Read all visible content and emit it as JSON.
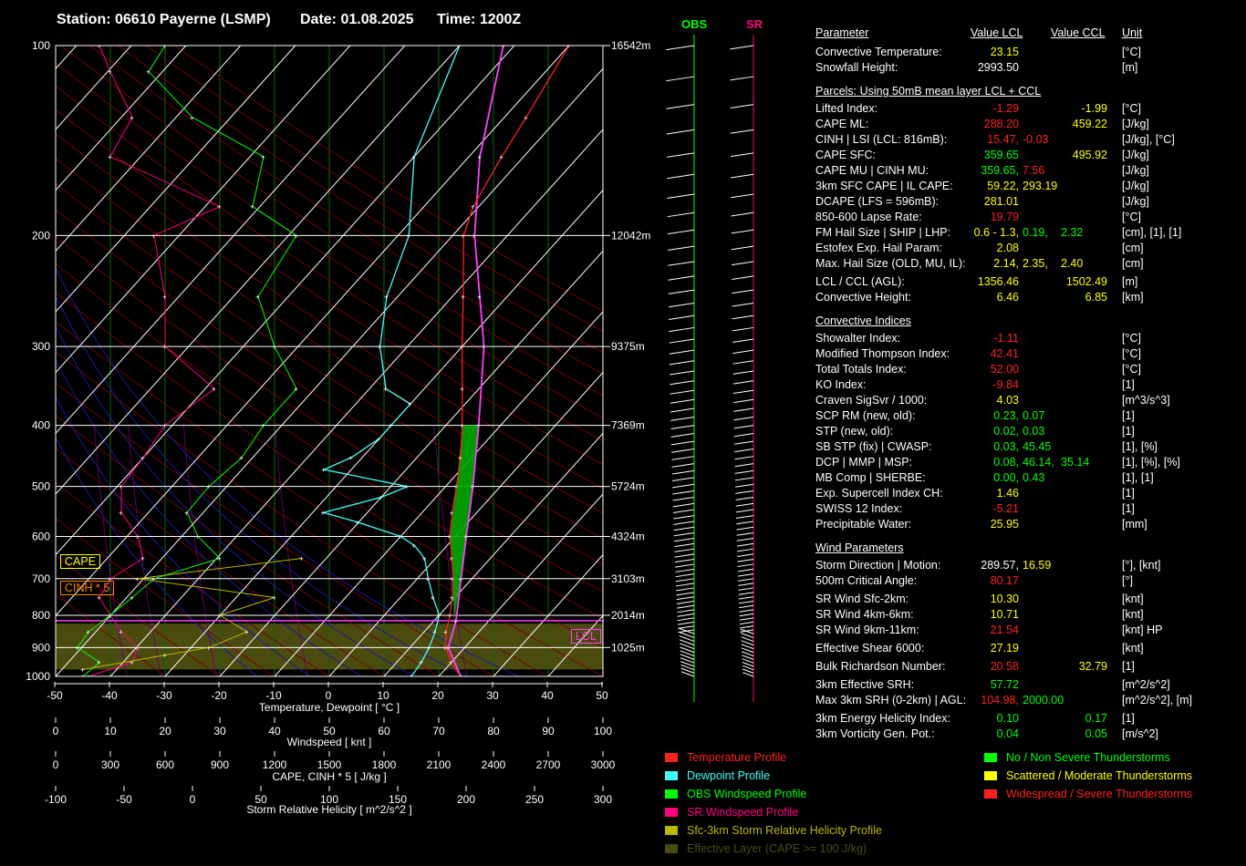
{
  "header": {
    "station": "Station: 06610 Payerne (LSMP)",
    "date": "Date: 01.08.2025",
    "time": "Time: 1200Z"
  },
  "colors": {
    "temperature": "#ff2020",
    "dewpoint": "#40ffff",
    "obs_wind": "#00ff00",
    "sr_wind": "#ff0080",
    "srh": "#b8b800",
    "effective_layer": "#4b4b10",
    "cape_fill": "#00aa00",
    "parcel": "#ff40ff"
  },
  "chart_data": {
    "type": "skew-t",
    "pressure_labels": [
      "100",
      "200",
      "300",
      "400",
      "500",
      "600",
      "700",
      "800",
      "900",
      "1000"
    ],
    "height_labels": [
      "16542m",
      "12042m",
      "9375m",
      "7369m",
      "5724m",
      "4324m",
      "3103m",
      "2014m",
      "1025m"
    ],
    "temp_ticks": [
      "-50",
      "-40",
      "-30",
      "-20",
      "-10",
      "0",
      "10",
      "20",
      "30",
      "40",
      "50"
    ],
    "temp_axis_label": "Temperature, Dewpoint  [ °C ]",
    "wind_ticks": [
      "0",
      "10",
      "20",
      "30",
      "40",
      "50",
      "60",
      "70",
      "80",
      "90",
      "100"
    ],
    "wind_axis_label": "Windspeed  [ knt ]",
    "cape_ticks": [
      "0",
      "300",
      "600",
      "900",
      "1200",
      "1500",
      "1800",
      "2100",
      "2400",
      "2700",
      "3000"
    ],
    "cape_axis_label": "CAPE, CINH * 5  [ J/kg ]",
    "srh_ticks": [
      "-100",
      "-50",
      "0",
      "50",
      "100",
      "150",
      "200",
      "250",
      "300"
    ],
    "srh_axis_label": "Storm Relative Helicity  [ m^2/s^2 ]",
    "cape_box": "CAPE",
    "cinh_box": "CINH * 5",
    "lcl_box": "LCL",
    "obs_label": "OBS",
    "sr_label": "SR",
    "temperature_profile": [
      [
        1000,
        24
      ],
      [
        950,
        20
      ],
      [
        900,
        16.5
      ],
      [
        850,
        14
      ],
      [
        800,
        12
      ],
      [
        750,
        9.5
      ],
      [
        700,
        6.5
      ],
      [
        650,
        3
      ],
      [
        600,
        -1
      ],
      [
        550,
        -4.5
      ],
      [
        500,
        -8
      ],
      [
        450,
        -12
      ],
      [
        400,
        -17
      ],
      [
        350,
        -23
      ],
      [
        300,
        -30
      ],
      [
        250,
        -38
      ],
      [
        200,
        -48
      ],
      [
        180,
        -51
      ],
      [
        150,
        -54
      ],
      [
        130,
        -56
      ],
      [
        100,
        -60
      ]
    ],
    "dewpoint_profile": [
      [
        1000,
        15
      ],
      [
        950,
        14.5
      ],
      [
        900,
        13.5
      ],
      [
        850,
        12
      ],
      [
        800,
        10
      ],
      [
        750,
        6
      ],
      [
        700,
        2
      ],
      [
        650,
        -2
      ],
      [
        620,
        -6
      ],
      [
        600,
        -10
      ],
      [
        570,
        -20
      ],
      [
        550,
        -28
      ],
      [
        520,
        -20
      ],
      [
        500,
        -17
      ],
      [
        470,
        -35
      ],
      [
        450,
        -32
      ],
      [
        420,
        -30
      ],
      [
        400,
        -30
      ],
      [
        370,
        -30
      ],
      [
        350,
        -37
      ],
      [
        300,
        -45
      ],
      [
        250,
        -52
      ],
      [
        200,
        -58
      ],
      [
        150,
        -70
      ],
      [
        100,
        -80
      ]
    ],
    "parcel_profile": [
      [
        1000,
        24
      ],
      [
        900,
        17
      ],
      [
        816,
        14
      ],
      [
        700,
        8
      ],
      [
        600,
        2
      ],
      [
        500,
        -5
      ],
      [
        400,
        -14
      ],
      [
        300,
        -26
      ],
      [
        250,
        -35
      ],
      [
        200,
        -46
      ],
      [
        150,
        -58
      ],
      [
        100,
        -72
      ]
    ]
  },
  "table": {
    "col_headers": {
      "param": "Parameter",
      "lcl": "Value LCL",
      "ccl": "Value CCL",
      "unit": "Unit"
    },
    "rows": [
      {
        "label": "Convective Temperature:",
        "v1": "23.15",
        "c1": "y",
        "unit": "[°C]"
      },
      {
        "label": "Snowfall Height:",
        "v1": "2993.50",
        "c1": "w",
        "unit": "[m]"
      },
      {
        "section": "Parcels: Using 50mB mean layer LCL + CCL"
      },
      {
        "label": "Lifted Index:",
        "v1": "-1.29",
        "c1": "r",
        "v2": "-1.99",
        "c2": "y",
        "unit": "[°C]"
      },
      {
        "label": "CAPE ML:",
        "v1": "288.20",
        "c1": "r",
        "v2": "459.22",
        "c2": "y",
        "unit": "[J/kg]"
      },
      {
        "label": "CINH | LSI (LCL: 816mB):",
        "v1": "15.47,",
        "c1": "r",
        "v3": "-0.03",
        "c3": "r",
        "unit": "[J/kg], [°C]"
      },
      {
        "label": "CAPE SFC:",
        "v1": "359.65",
        "c1": "g",
        "v2": "495.92",
        "c2": "y",
        "unit": "[J/kg]"
      },
      {
        "label": "CAPE MU | CINH MU:",
        "v1": "359.65,",
        "c1": "g",
        "v3": "7.56",
        "c3": "r",
        "unit": "[J/kg]"
      },
      {
        "label": "3km SFC CAPE | IL CAPE:",
        "v1": "59.22,",
        "c1": "y",
        "v3": "293.19",
        "c3": "y",
        "unit": "[J/kg]"
      },
      {
        "label": "DCAPE (LFS = 596mB):",
        "v1": "281.01",
        "c1": "y",
        "unit": "[J/kg]"
      },
      {
        "label": "850-600 Lapse Rate:",
        "v1": "19.79",
        "c1": "r",
        "unit": "[°C]"
      },
      {
        "label": "FM Hail Size | SHIP | LHP:",
        "v1": "0.6 - 1.3,",
        "c1": "y",
        "v3": "0.19,",
        "c3": "g",
        "v4": "2.32",
        "c4": "g",
        "unit": "[cm], [1], [1]"
      },
      {
        "label": "Estofex Exp. Hail Param:",
        "v1": "2.08",
        "c1": "y",
        "unit": "[cm]"
      },
      {
        "label": "Max. Hail Size (OLD, MU, IL):",
        "v1": "2.14,",
        "c1": "y",
        "v3": "2.35,",
        "c3": "y",
        "v4": "2.40",
        "c4": "y",
        "unit": "[cm]"
      },
      {
        "label": "LCL / CCL (AGL):",
        "v1": "1356.46",
        "c1": "y",
        "v2": "1502.49",
        "c2": "y",
        "unit": "[m]"
      },
      {
        "label": "Convective Height:",
        "v1": "6.46",
        "c1": "y",
        "v2": "6.85",
        "c2": "y",
        "unit": "[km]"
      },
      {
        "section": "Convective Indices"
      },
      {
        "label": "Showalter Index:",
        "v1": "-1.11",
        "c1": "r",
        "unit": "[°C]"
      },
      {
        "label": "Modified Thompson Index:",
        "v1": "42.41",
        "c1": "r",
        "unit": "[°C]"
      },
      {
        "label": "Total Totals Index:",
        "v1": "52.00",
        "c1": "r",
        "unit": "[°C]"
      },
      {
        "label": "KO Index:",
        "v1": "-9.84",
        "c1": "r",
        "unit": "[1]"
      },
      {
        "label": "Craven SigSvr / 1000:",
        "v1": "4.03",
        "c1": "y",
        "unit": "[m^3/s^3]"
      },
      {
        "label": "SCP RM (new, old):",
        "v1": "0.23,",
        "c1": "g",
        "v3": "0.07",
        "c3": "g",
        "unit": "[1]"
      },
      {
        "label": "STP (new, old):",
        "v1": "0.02,",
        "c1": "g",
        "v3": "0.03",
        "c3": "g",
        "unit": "[1]"
      },
      {
        "label": "SB STP (fix) | CWASP:",
        "v1": "0.03,",
        "c1": "g",
        "v3": "45.45",
        "c3": "g",
        "unit": "[1], [%]"
      },
      {
        "label": "DCP | MMP | MSP:",
        "v1": "0.08,",
        "c1": "g",
        "v3": "46.14,",
        "c3": "g",
        "v4": "35.14",
        "c4": "g",
        "unit": "[1], [%], [%]"
      },
      {
        "label": "MB Comp | SHERBE:",
        "v1": "0.00,",
        "c1": "g",
        "v3": "0.43",
        "c3": "g",
        "unit": "[1], [1]"
      },
      {
        "label": "Exp. Supercell Index CH:",
        "v1": "1.46",
        "c1": "y",
        "unit": "[1]"
      },
      {
        "label": "SWISS 12 Index:",
        "v1": "-5.21",
        "c1": "r",
        "unit": "[1]"
      },
      {
        "label": "Precipitable Water:",
        "v1": "25.95",
        "c1": "y",
        "unit": "[mm]"
      },
      {
        "section": "Wind Parameters"
      },
      {
        "label": "Storm Direction | Motion:",
        "v1": "289.57,",
        "c1": "w",
        "v3": "16.59",
        "c3": "y",
        "unit": "[°], [knt]"
      },
      {
        "label": "500m Critical Angle:",
        "v1": "80.17",
        "c1": "r",
        "unit": "[°]"
      },
      {
        "label": "SR Wind Sfc-2km:",
        "v1": "10.30",
        "c1": "y",
        "unit": "[knt]"
      },
      {
        "label": "SR Wind 4km-6km:",
        "v1": "10.71",
        "c1": "y",
        "unit": "[knt]"
      },
      {
        "label": "SR Wind 9km-11km:",
        "v1": "21.54",
        "c1": "r",
        "unit": "[knt] HP"
      },
      {
        "label": "Effective Shear 6000:",
        "v1": "27.19",
        "c1": "y",
        "unit": "[knt]"
      },
      {
        "label": "Bulk Richardson Number:",
        "v1": "20.58",
        "c1": "r",
        "v2": "32.79",
        "c2": "y",
        "unit": "[1]"
      },
      {
        "label": "3km Effective SRH:",
        "v1": "57.72",
        "c1": "g",
        "unit": "[m^2/s^2]"
      },
      {
        "label": "Max 3km SRH (0-2km) | AGL:",
        "v1": "104.98,",
        "c1": "r",
        "v3": "2000.00",
        "c3": "g",
        "unit": "[m^2/s^2], [m]"
      },
      {
        "label": "3km Energy Helicity Index:",
        "v1": "0.10",
        "c1": "g",
        "v2": "0.17",
        "c2": "g",
        "unit": "[1]"
      },
      {
        "label": "3km Vorticity Gen. Pot.:",
        "v1": "0.04",
        "c1": "g",
        "v2": "0.05",
        "c2": "g",
        "unit": "[m/s^2]"
      }
    ]
  },
  "legend_left": [
    {
      "label": "Temperature Profile",
      "color": "#ff2020"
    },
    {
      "label": "Dewpoint Profile",
      "color": "#40ffff"
    },
    {
      "label": "OBS Windspeed Profile",
      "color": "#00ff00"
    },
    {
      "label": "SR Windspeed Profile",
      "color": "#ff0080"
    },
    {
      "label": "Sfc-3km Storm Relative Helicity Profile",
      "color": "#b8b800"
    },
    {
      "label": "Effective Layer (CAPE >= 100 J/kg)",
      "color": "#4b4b10"
    }
  ],
  "legend_right": [
    {
      "label": "No / Non Severe Thunderstorms",
      "color": "#00ff00"
    },
    {
      "label": "Scattered / Moderate Thunderstorms",
      "color": "#ffff00"
    },
    {
      "label": "Widespread / Severe Thunderstorms",
      "color": "#ff2020"
    }
  ]
}
